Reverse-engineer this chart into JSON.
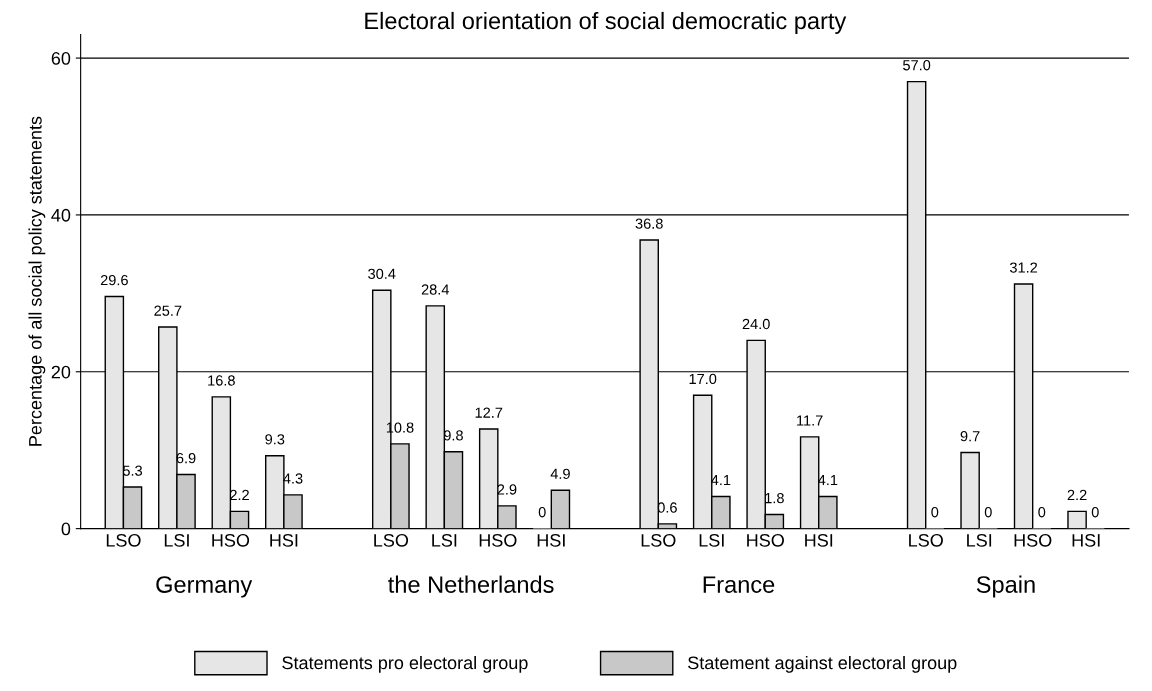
{
  "chart_data": {
    "type": "bar",
    "title": "Electoral orientation of social democratic party",
    "ylabel": "Percentage of all social policy statements",
    "categories": [
      "LSO",
      "LSI",
      "HSO",
      "HSI",
      null,
      "LSO",
      "LSI",
      "HSO",
      "HSI",
      null,
      "LSO",
      "LSI",
      "HSO",
      "HSI",
      null,
      "LSO",
      "LSI",
      "HSO",
      "HSI"
    ],
    "annotations": [
      "Germany",
      "the Netherlands",
      "France",
      "Spain"
    ],
    "series": [
      {
        "name": "Statements pro electoral group",
        "color": "#e6e6e6",
        "values": [
          29.6,
          25.7,
          16.8,
          9.3,
          null,
          30.4,
          28.4,
          12.7,
          0,
          null,
          36.8,
          17.0,
          24.0,
          11.7,
          null,
          57.0,
          9.7,
          31.2,
          2.2
        ],
        "value_labels": [
          "29.6",
          "25.7",
          "16.8",
          "9.3",
          null,
          "30.4",
          "28.4",
          "12.7",
          "0",
          null,
          "36.8",
          "17.0",
          "24.0",
          "11.7",
          null,
          "57.0",
          "9.7",
          "31.2",
          "2.2"
        ]
      },
      {
        "name": "Statement against electoral group",
        "color": "#c8c8c8",
        "values": [
          5.3,
          6.9,
          2.2,
          4.3,
          null,
          10.8,
          9.8,
          2.9,
          4.9,
          null,
          0.6,
          4.1,
          1.8,
          4.1,
          null,
          0,
          0,
          0,
          0
        ],
        "value_labels": [
          "5.3",
          "6.9",
          "2.2",
          "4.3",
          null,
          "10.8",
          "9.8",
          "2.9",
          "4.9",
          null,
          "0.6",
          "4.1",
          "1.8",
          "4.1",
          null,
          "0",
          "0",
          "0",
          "0"
        ]
      }
    ],
    "ylim": [
      0,
      63
    ],
    "yticks": [
      0,
      20,
      40,
      60
    ],
    "grid": "y",
    "legend": "bottom"
  }
}
